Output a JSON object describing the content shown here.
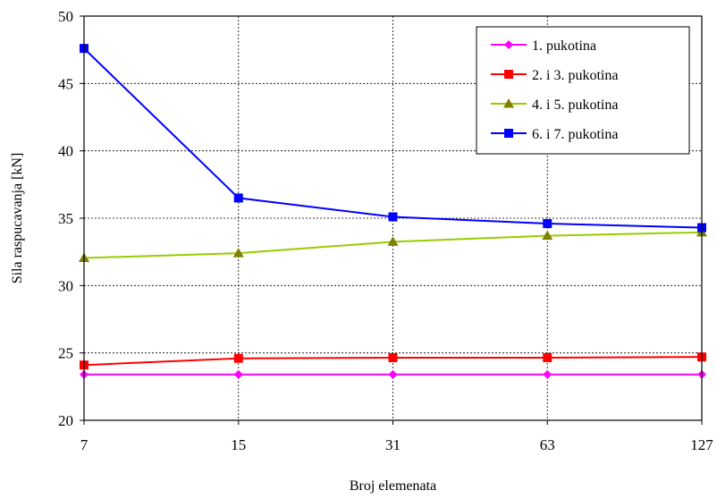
{
  "chart_data": {
    "type": "line",
    "xlabel": "Broj elemenata",
    "ylabel": "Sila raspucavanja [kN]",
    "categories": [
      "7",
      "15",
      "31",
      "63",
      "127"
    ],
    "ylim": [
      20,
      50
    ],
    "yticks": [
      20,
      25,
      30,
      35,
      40,
      45,
      50
    ],
    "grid": true,
    "legend_position": "top-right",
    "series": [
      {
        "name": "1. pukotina",
        "color": "#ff00ff",
        "marker": "diamond",
        "values": [
          23.4,
          23.4,
          23.4,
          23.4,
          23.4
        ]
      },
      {
        "name": "2. i 3. pukotina",
        "color": "#ff0000",
        "marker": "square",
        "values": [
          24.1,
          24.6,
          24.65,
          24.65,
          24.7
        ]
      },
      {
        "name": "4. i 5. pukotina",
        "color": "#99cc00",
        "marker_color": "#808000",
        "marker": "triangle",
        "values": [
          32.05,
          32.4,
          33.25,
          33.7,
          33.95
        ]
      },
      {
        "name": "6. i 7. pukotina",
        "color": "#0000ff",
        "marker": "square",
        "values": [
          47.6,
          36.5,
          35.1,
          34.6,
          34.3
        ]
      }
    ]
  }
}
